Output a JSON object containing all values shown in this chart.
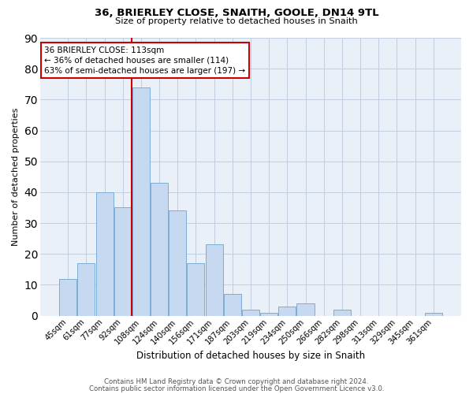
{
  "title1": "36, BRIERLEY CLOSE, SNAITH, GOOLE, DN14 9TL",
  "title2": "Size of property relative to detached houses in Snaith",
  "xlabel": "Distribution of detached houses by size in Snaith",
  "ylabel": "Number of detached properties",
  "bar_labels": [
    "45sqm",
    "61sqm",
    "77sqm",
    "92sqm",
    "108sqm",
    "124sqm",
    "140sqm",
    "156sqm",
    "171sqm",
    "187sqm",
    "203sqm",
    "219sqm",
    "234sqm",
    "250sqm",
    "266sqm",
    "282sqm",
    "298sqm",
    "313sqm",
    "329sqm",
    "345sqm",
    "361sqm"
  ],
  "bar_values": [
    12,
    17,
    40,
    35,
    74,
    43,
    34,
    17,
    23,
    7,
    2,
    1,
    3,
    4,
    0,
    2,
    0,
    0,
    0,
    0,
    1
  ],
  "bar_color": "#c6d9f1",
  "bar_edge_color": "#7aadd6",
  "grid_color": "#c0cedf",
  "background_color": "#eaf0f8",
  "ref_line_color": "#cc0000",
  "annotation_line1": "36 BRIERLEY CLOSE: 113sqm",
  "annotation_line2": "← 36% of detached houses are smaller (114)",
  "annotation_line3": "63% of semi-detached houses are larger (197) →",
  "annotation_box_color": "#cc0000",
  "ylim": [
    0,
    90
  ],
  "yticks": [
    0,
    10,
    20,
    30,
    40,
    50,
    60,
    70,
    80,
    90
  ],
  "footer1": "Contains HM Land Registry data © Crown copyright and database right 2024.",
  "footer2": "Contains public sector information licensed under the Open Government Licence v3.0."
}
